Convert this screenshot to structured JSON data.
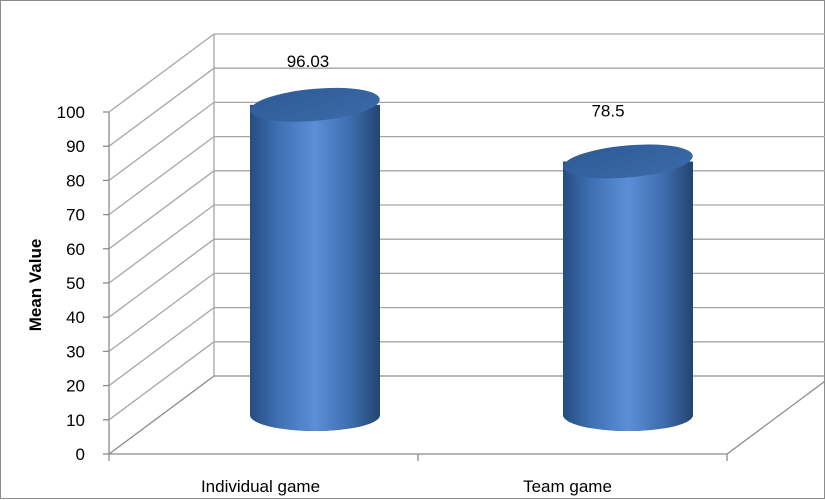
{
  "chart_data": {
    "type": "bar",
    "style": "3d-cylinder",
    "categories": [
      "Individual game",
      "Team game"
    ],
    "values": [
      96.03,
      78.5
    ],
    "data_labels": [
      "96.03",
      "78.5"
    ],
    "title": "",
    "xlabel": "",
    "ylabel": "Mean Value",
    "ylim": [
      0,
      100
    ],
    "yticks": [
      0,
      10,
      20,
      30,
      40,
      50,
      60,
      70,
      80,
      90,
      100
    ],
    "grid": true,
    "legend": "none",
    "bar_color": "#4f81bd",
    "gridline_color": "#a6a6a6"
  }
}
